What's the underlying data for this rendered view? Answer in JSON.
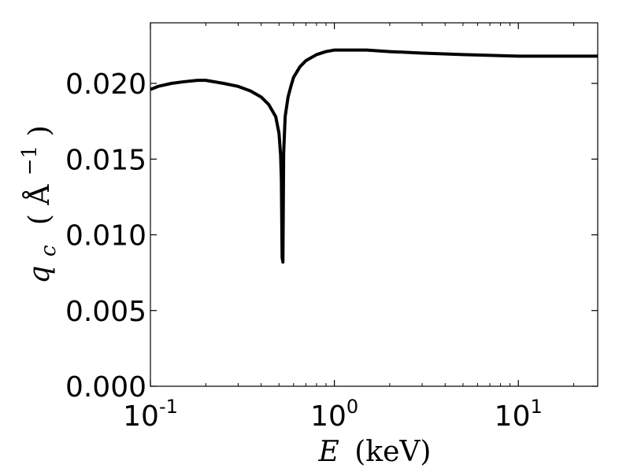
{
  "chart_data": {
    "type": "line",
    "title": "",
    "xscale": "log",
    "xlim": [
      0.1,
      27
    ],
    "ylim": [
      0.0,
      0.024
    ],
    "grid": false,
    "legend": "none",
    "xlabel": {
      "variable": "E",
      "unit": "(keV)"
    },
    "ylabel": {
      "variable": "q",
      "subscript": "c",
      "unit_open": "(",
      "unit_symbol": "Å",
      "unit_exponent": "−1",
      "unit_close": ")"
    },
    "x_ticks": [
      {
        "value": 0.1,
        "base": "10",
        "exponent": "-1"
      },
      {
        "value": 1,
        "base": "10",
        "exponent": "0"
      },
      {
        "value": 10,
        "base": "10",
        "exponent": "1"
      }
    ],
    "y_ticks": [
      {
        "value": 0.0,
        "label": "0.000"
      },
      {
        "value": 0.005,
        "label": "0.005"
      },
      {
        "value": 0.01,
        "label": "0.010"
      },
      {
        "value": 0.015,
        "label": "0.015"
      },
      {
        "value": 0.02,
        "label": "0.020"
      }
    ],
    "series": [
      {
        "color": "#000000",
        "x": [
          0.1,
          0.11,
          0.13,
          0.15,
          0.18,
          0.2,
          0.25,
          0.3,
          0.35,
          0.4,
          0.44,
          0.48,
          0.5,
          0.51,
          0.515,
          0.52,
          0.525,
          0.53,
          0.54,
          0.56,
          0.58,
          0.6,
          0.65,
          0.7,
          0.8,
          0.9,
          1.0,
          1.2,
          1.5,
          2,
          3,
          5,
          10,
          20,
          27
        ],
        "y": [
          0.0196,
          0.0198,
          0.02,
          0.0201,
          0.0202,
          0.0202,
          0.02,
          0.0198,
          0.0195,
          0.0191,
          0.0186,
          0.0178,
          0.0167,
          0.0153,
          0.0137,
          0.0085,
          0.0082,
          0.0154,
          0.0178,
          0.0191,
          0.0198,
          0.0204,
          0.0211,
          0.0215,
          0.0219,
          0.0221,
          0.0222,
          0.0222,
          0.0222,
          0.0221,
          0.022,
          0.0219,
          0.0218,
          0.0218,
          0.0218
        ]
      }
    ]
  }
}
